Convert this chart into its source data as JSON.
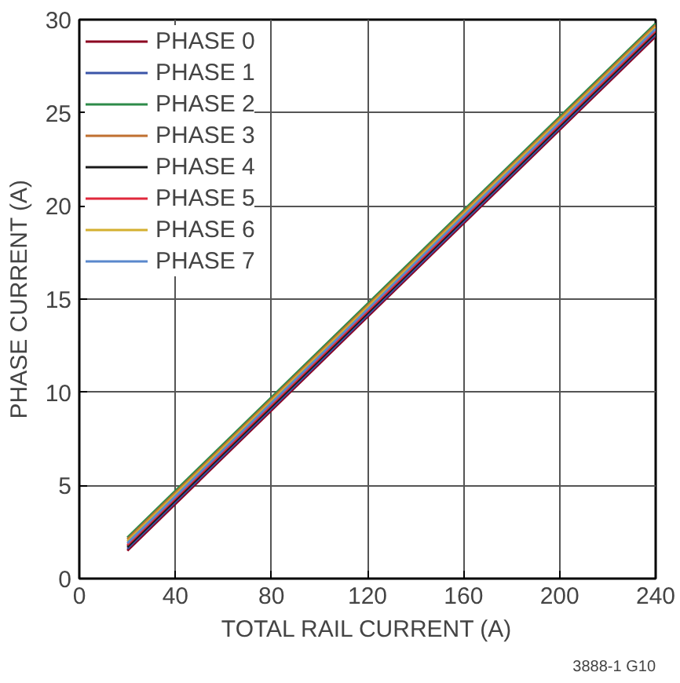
{
  "chart_data": {
    "type": "line",
    "xlabel": "TOTAL RAIL CURRENT (A)",
    "ylabel": "PHASE CURRENT (A)",
    "x": [
      20,
      240
    ],
    "series": [
      {
        "name": "PHASE 0",
        "color": "#8b0020",
        "values": [
          1.5,
          29.1
        ]
      },
      {
        "name": "PHASE 1",
        "color": "#3a55a8",
        "values": [
          1.6,
          29.2
        ]
      },
      {
        "name": "PHASE 2",
        "color": "#2e8b4a",
        "values": [
          2.2,
          29.8
        ]
      },
      {
        "name": "PHASE 3",
        "color": "#c07030",
        "values": [
          2.1,
          29.7
        ]
      },
      {
        "name": "PHASE 4",
        "color": "#1a1a1a",
        "values": [
          1.7,
          29.3
        ]
      },
      {
        "name": "PHASE 5",
        "color": "#e0283c",
        "values": [
          1.8,
          29.4
        ]
      },
      {
        "name": "PHASE 6",
        "color": "#d4b030",
        "values": [
          2.0,
          29.6
        ]
      },
      {
        "name": "PHASE 7",
        "color": "#5a88cc",
        "values": [
          1.9,
          29.5
        ]
      }
    ],
    "xlim": [
      0,
      240
    ],
    "xticks": [
      0,
      40,
      80,
      120,
      160,
      200,
      240
    ],
    "ylim": [
      0,
      30
    ],
    "yticks": [
      0,
      5,
      10,
      15,
      20,
      25,
      30
    ],
    "grid": true,
    "legend": "top left",
    "annotations": [
      "3888-1 G10"
    ]
  }
}
